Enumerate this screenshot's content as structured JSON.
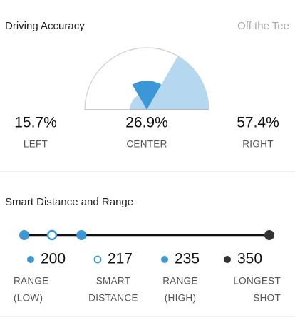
{
  "driving": {
    "title": "Driving Accuracy",
    "subtitle": "Off the Tee",
    "categories": [
      "LEFT",
      "CENTER",
      "RIGHT"
    ],
    "values": [
      15.7,
      26.9,
      57.4
    ],
    "value_labels": [
      "15.7%",
      "26.9%",
      "57.4%"
    ],
    "colors": [
      "#b5d7ef",
      "#3b97d5",
      "#b5d7ef"
    ]
  },
  "distance": {
    "title": "Smart Distance and Range",
    "items": [
      {
        "value": 200,
        "label": [
          "RANGE",
          "(LOW)"
        ],
        "color": "#3b97d5",
        "hollow": false
      },
      {
        "value": 217,
        "label": [
          "SMART",
          "DISTANCE"
        ],
        "color": "#3b97d5",
        "hollow": true
      },
      {
        "value": 235,
        "label": [
          "RANGE",
          "(HIGH)"
        ],
        "color": "#3b97d5",
        "hollow": false
      },
      {
        "value": 350,
        "label": [
          "LONGEST",
          "SHOT"
        ],
        "color": "#333333",
        "hollow": false
      }
    ]
  }
}
